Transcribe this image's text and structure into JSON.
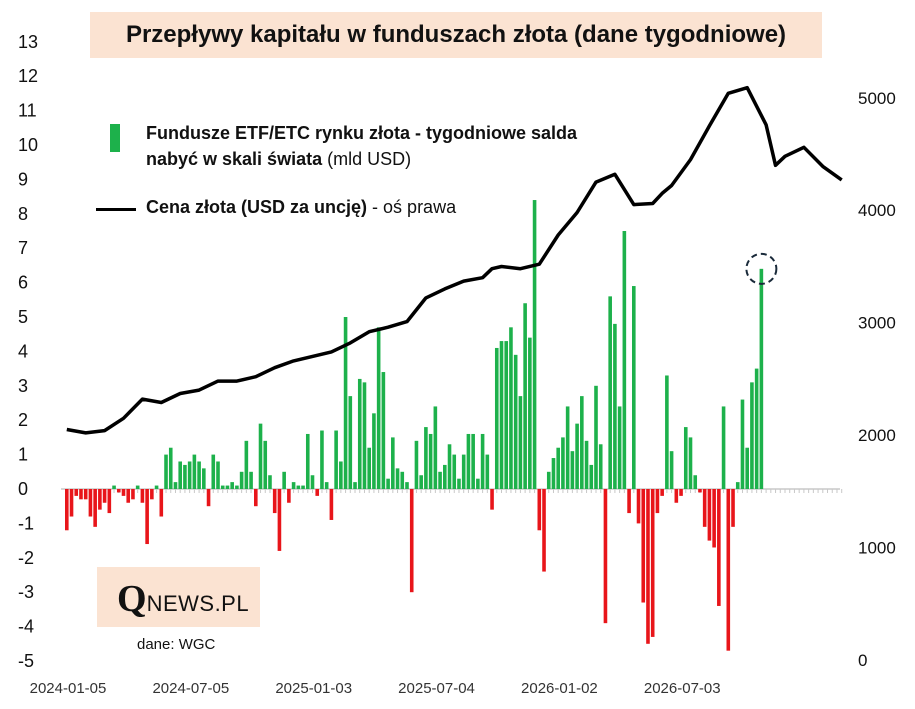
{
  "chart_data": {
    "type": "bar",
    "title": "Przepływy kapitału w funduszach złota (dane tygodniowe)",
    "legend": {
      "bars_bold": "Fundusze ETF/ETC rynku złota - tygodniowe salda nabyć w skali świata",
      "bars_unit": " (mld USD)",
      "line_bold": "Cena złota (USD za uncję)",
      "line_suffix": " - oś prawa"
    },
    "colors": {
      "positive": "#1db14b",
      "negative": "#e8151a",
      "line": "#000000",
      "title_bg": "#fbe3d2"
    },
    "x_tick_labels": [
      "2024-01-05",
      "2024-07-05",
      "2025-01-03",
      "2025-07-04",
      "2026-01-02",
      "2026-07-03"
    ],
    "y_left": {
      "ylim": [
        -5,
        13
      ],
      "ticks": [
        "13",
        "12",
        "11",
        "10",
        "9",
        "8",
        "7",
        "6",
        "5",
        "4",
        "3",
        "2",
        "1",
        "0",
        "-1",
        "-2",
        "-3",
        "-4",
        "-5"
      ]
    },
    "y_right": {
      "ylim": [
        0,
        5100
      ],
      "ticks": [
        "5000",
        "4000",
        "3000",
        "2000",
        "1000",
        "0"
      ]
    },
    "series": [
      {
        "name": "Fundusze ETF/ETC rynku złota - tygodniowe salda nabyć w skali świata",
        "axis": "left",
        "values": [
          -1.2,
          -0.8,
          -0.2,
          -0.3,
          -0.3,
          -0.8,
          -1.1,
          -0.6,
          -0.4,
          -0.7,
          0.1,
          -0.1,
          -0.2,
          -0.4,
          -0.3,
          0.1,
          -0.4,
          -1.6,
          -0.3,
          0.1,
          -0.8,
          1.0,
          1.2,
          0.2,
          0.8,
          0.7,
          0.8,
          1.0,
          0.8,
          0.6,
          -0.5,
          1.0,
          0.8,
          0.1,
          0.1,
          0.2,
          0.1,
          0.5,
          1.4,
          0.5,
          -0.5,
          1.9,
          1.4,
          0.4,
          -0.7,
          -1.8,
          0.5,
          -0.4,
          0.2,
          0.1,
          0.1,
          1.6,
          0.4,
          -0.2,
          1.7,
          0.2,
          -0.9,
          1.7,
          0.8,
          5.0,
          2.7,
          0.2,
          3.2,
          3.1,
          1.2,
          2.2,
          4.7,
          3.4,
          0.3,
          1.5,
          0.6,
          0.5,
          0.2,
          -3.0,
          1.4,
          0.4,
          1.8,
          1.6,
          2.4,
          0.5,
          0.7,
          1.3,
          1.0,
          0.3,
          1.0,
          1.6,
          1.6,
          0.3,
          1.6,
          1.0,
          -0.6,
          4.1,
          4.3,
          4.3,
          4.7,
          3.9,
          2.7,
          5.4,
          4.4,
          8.4,
          -1.2,
          -2.4,
          0.5,
          0.9,
          1.2,
          1.5,
          2.4,
          1.1,
          1.9,
          2.7,
          1.4,
          0.7,
          3.0,
          1.3,
          -3.9,
          5.6,
          4.8,
          2.4,
          7.5,
          -0.7,
          5.9,
          -1.0,
          -3.3,
          -4.5,
          -4.3,
          -0.7,
          -0.2,
          3.3,
          1.1,
          -0.4,
          -0.2,
          1.8,
          1.5,
          0.4,
          -0.1,
          -1.1,
          -1.5,
          -1.7,
          -3.4,
          2.4,
          -4.7,
          -1.1,
          0.2,
          2.6,
          1.2,
          3.1,
          3.5,
          6.4
        ]
      },
      {
        "name": "Cena złota (USD za uncję)",
        "axis": "right",
        "x": [
          0,
          4,
          8,
          12,
          16,
          20,
          24,
          28,
          32,
          36,
          40,
          44,
          48,
          52,
          56,
          60,
          64,
          68,
          72,
          76,
          80,
          84,
          88,
          90,
          92,
          96,
          100,
          104,
          108,
          112,
          116,
          120,
          124,
          126,
          128,
          132,
          136,
          140,
          144,
          148,
          150,
          152,
          156,
          160,
          164
        ],
        "values": [
          2050,
          2020,
          2040,
          2150,
          2320,
          2290,
          2370,
          2400,
          2480,
          2480,
          2520,
          2600,
          2660,
          2700,
          2740,
          2820,
          2920,
          2960,
          3010,
          3220,
          3300,
          3370,
          3400,
          3480,
          3500,
          3480,
          3520,
          3780,
          3980,
          4250,
          4320,
          4050,
          4060,
          4150,
          4220,
          4450,
          4750,
          5040,
          5090,
          4760,
          4400,
          4480,
          4560,
          4390,
          4270
        ]
      }
    ],
    "annotation": "dashed circle around the last bar",
    "logo": {
      "letter": "Q",
      "rest": "NEWS.PL"
    },
    "source": "dane: WGC"
  }
}
